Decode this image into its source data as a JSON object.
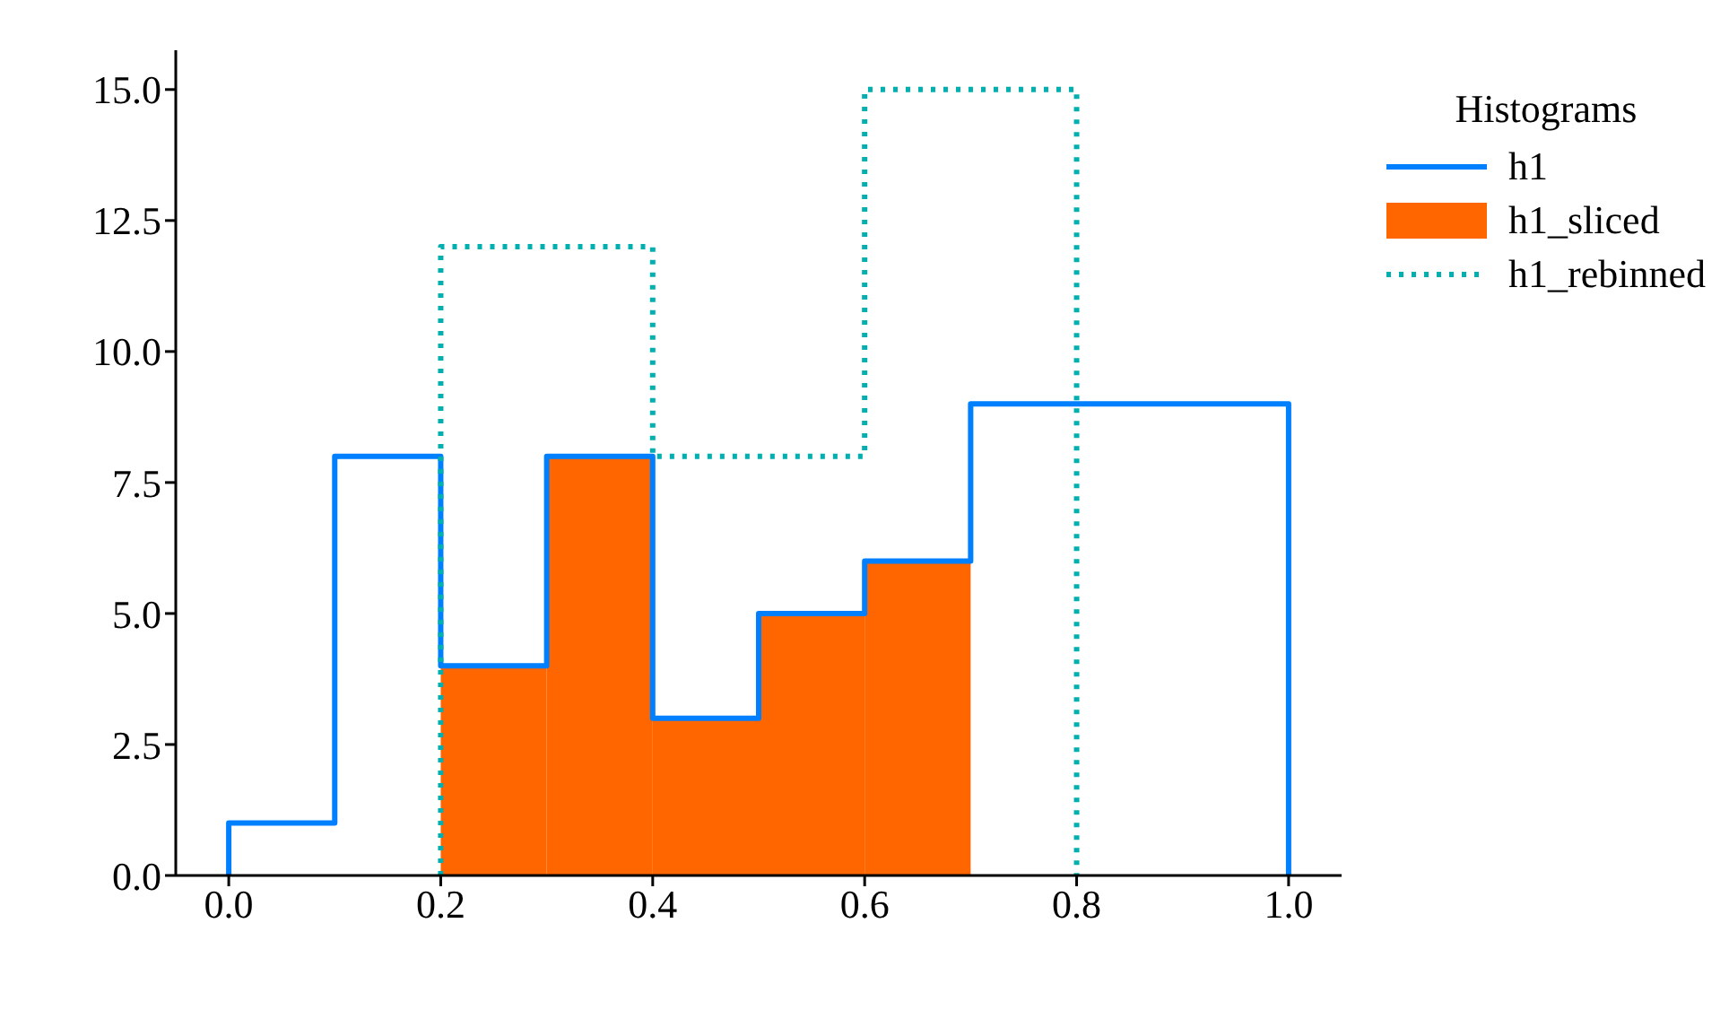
{
  "chart_data": {
    "type": "histogram",
    "legend_title": "Histograms",
    "legend": "right",
    "grid": false,
    "bins": [
      0.2,
      0.3,
      0.4,
      0.5,
      0.6,
      0.7
    ],
    "xlim": [
      -0.05,
      1.05
    ],
    "xticks": [
      {
        "value": 0,
        "label": "0.0"
      },
      {
        "value": 0.2,
        "label": "0.2"
      },
      {
        "value": 0.4,
        "label": "0.4"
      },
      {
        "value": 0.6,
        "label": "0.6"
      },
      {
        "value": 0.8,
        "label": "0.8"
      },
      {
        "value": 1,
        "label": "1.0"
      }
    ],
    "ylim": [
      0,
      15.75
    ],
    "yticks": [
      {
        "value": 0,
        "label": "0.0"
      },
      {
        "value": 2.5,
        "label": "2.5"
      },
      {
        "value": 5,
        "label": "5.0"
      },
      {
        "value": 7.5,
        "label": "7.5"
      },
      {
        "value": 10,
        "label": "10.0"
      },
      {
        "value": 12.5,
        "label": "12.5"
      },
      {
        "value": 15,
        "label": "15.0"
      }
    ],
    "series": [
      {
        "name": "h1",
        "type": "step",
        "color": "#0080ff",
        "line_style": "solid",
        "x": [
          0,
          0,
          0.1,
          0.2,
          0.3,
          0.4,
          0.5,
          0.6,
          0.7,
          0.8,
          0.9,
          1.0,
          1.0
        ],
        "values": [
          0,
          1,
          8,
          4,
          8,
          3,
          5,
          6,
          9,
          9,
          9,
          9,
          0
        ]
      },
      {
        "name": "h1_sliced",
        "type": "histogram",
        "color": "#ff6600",
        "values": [
          4,
          8,
          3,
          5,
          6
        ]
      },
      {
        "name": "h1_rebinned",
        "type": "step",
        "color": "#00b0b0",
        "line_style": "dotted",
        "x": [
          0.2,
          0.2,
          0.4,
          0.6,
          0.8,
          0.8
        ],
        "values": [
          0,
          12,
          8,
          15,
          15,
          0
        ]
      }
    ]
  }
}
